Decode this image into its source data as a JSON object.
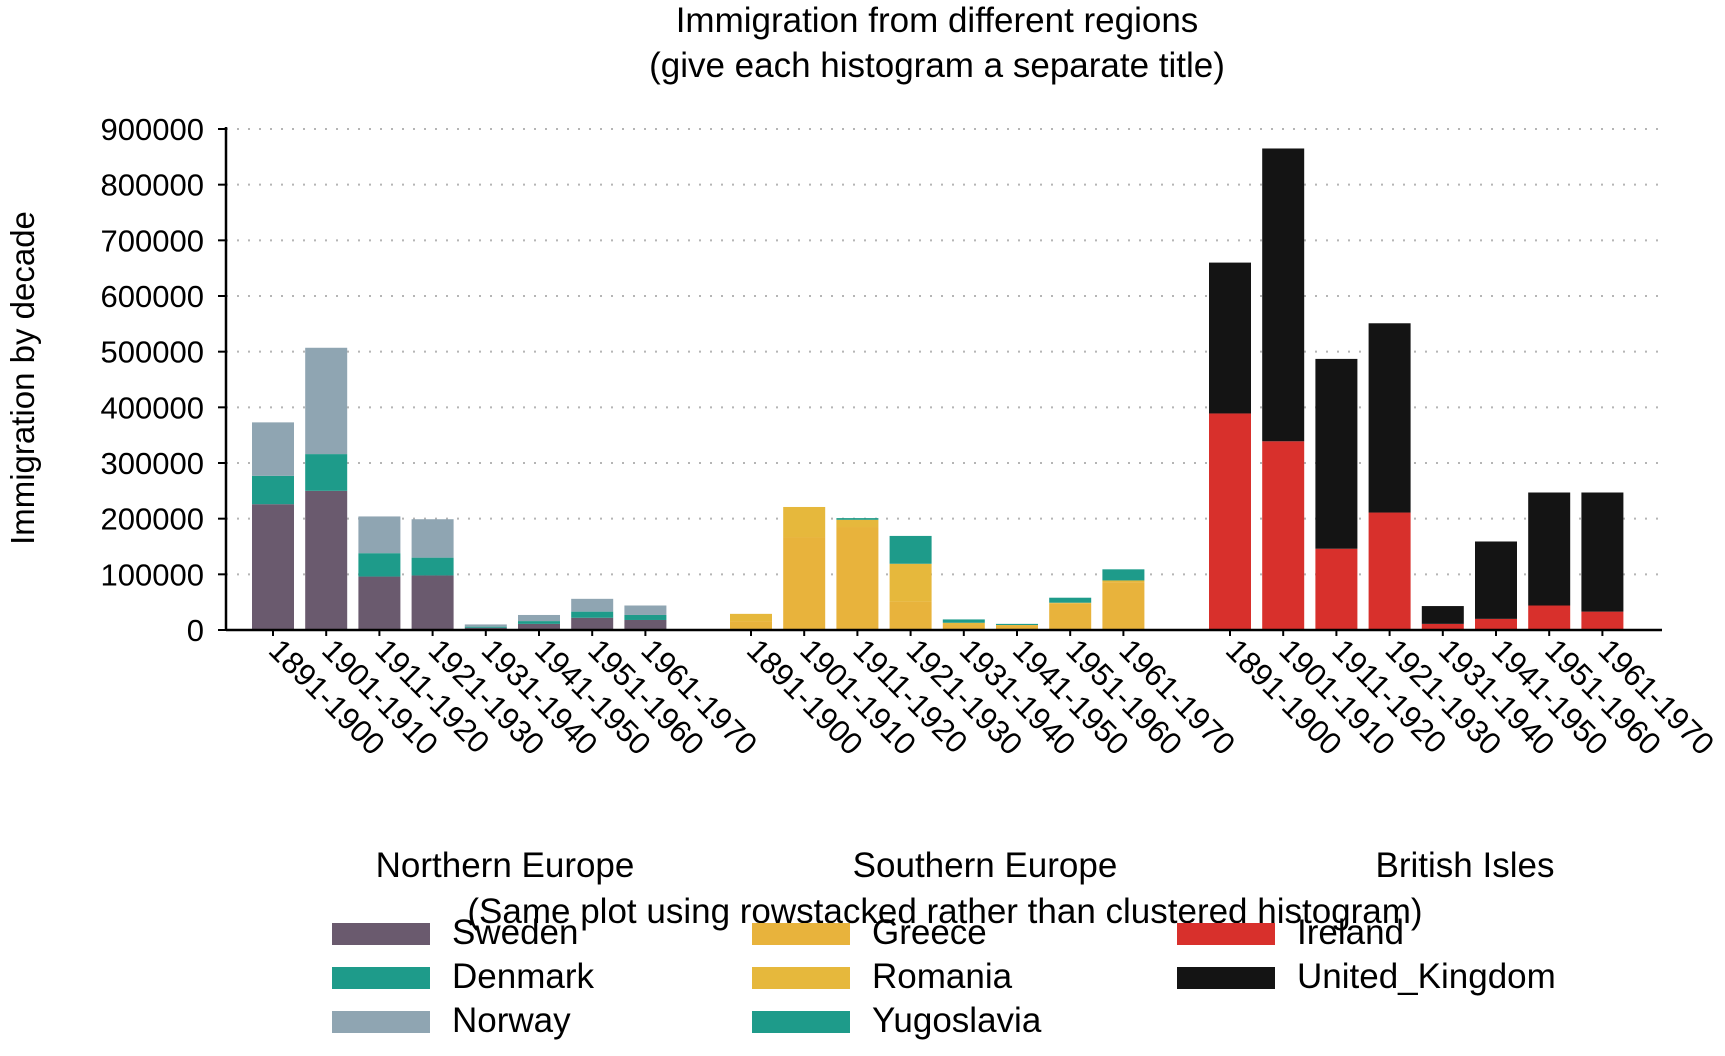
{
  "chart_data": {
    "type": "bar",
    "title": [
      "Immigration from different regions",
      "(give each histogram a separate title)"
    ],
    "ylabel": "Immigration by decade",
    "xlabel": "",
    "ylim": [
      0,
      900000
    ],
    "yticks": [
      0,
      100000,
      200000,
      300000,
      400000,
      500000,
      600000,
      700000,
      800000,
      900000
    ],
    "grid": "horizontal-dotted",
    "categories": [
      "1891-1900",
      "1901-1910",
      "1911-1920",
      "1921-1930",
      "1931-1940",
      "1941-1950",
      "1951-1960",
      "1961-1970"
    ],
    "note": "(Same plot using rowstacked rather than clustered histogram)",
    "legend_placement": "bottom",
    "groups": [
      {
        "name": "Northern Europe",
        "series": [
          {
            "name": "Sweden",
            "color": "#6a5a6e",
            "values": [
              226000,
              250000,
              96000,
              98000,
              4000,
              11000,
              22000,
              18000
            ]
          },
          {
            "name": "Denmark",
            "color": "#1e9b8a",
            "values": [
              51000,
              66000,
              42000,
              32000,
              2000,
              5000,
              11000,
              9000
            ]
          },
          {
            "name": "Norway",
            "color": "#8fa5b2",
            "values": [
              96000,
              191000,
              66000,
              69000,
              4000,
              11000,
              23000,
              17000
            ]
          }
        ]
      },
      {
        "name": "Southern Europe",
        "series": [
          {
            "name": "Greece",
            "color": "#e8b33c",
            "values": [
              16000,
              167000,
              185000,
              51000,
              9000,
              8000,
              48000,
              86000
            ]
          },
          {
            "name": "Romania",
            "color": "#e6b83c",
            "values": [
              13000,
              54000,
              13000,
              68000,
              4000,
              1000,
              1000,
              3000
            ]
          },
          {
            "name": "Yugoslavia",
            "color": "#1e9b8a",
            "values": [
              0,
              0,
              3000,
              50000,
              6000,
              2000,
              9000,
              20000
            ]
          }
        ]
      },
      {
        "name": "British Isles",
        "series": [
          {
            "name": "Ireland",
            "color": "#d8302c",
            "values": [
              389000,
              339000,
              146000,
              211000,
              11000,
              20000,
              44000,
              33000
            ]
          },
          {
            "name": "United_Kingdom",
            "color": "#141414",
            "values": [
              271000,
              526000,
              341000,
              340000,
              32000,
              139000,
              203000,
              214000
            ]
          }
        ]
      }
    ]
  }
}
